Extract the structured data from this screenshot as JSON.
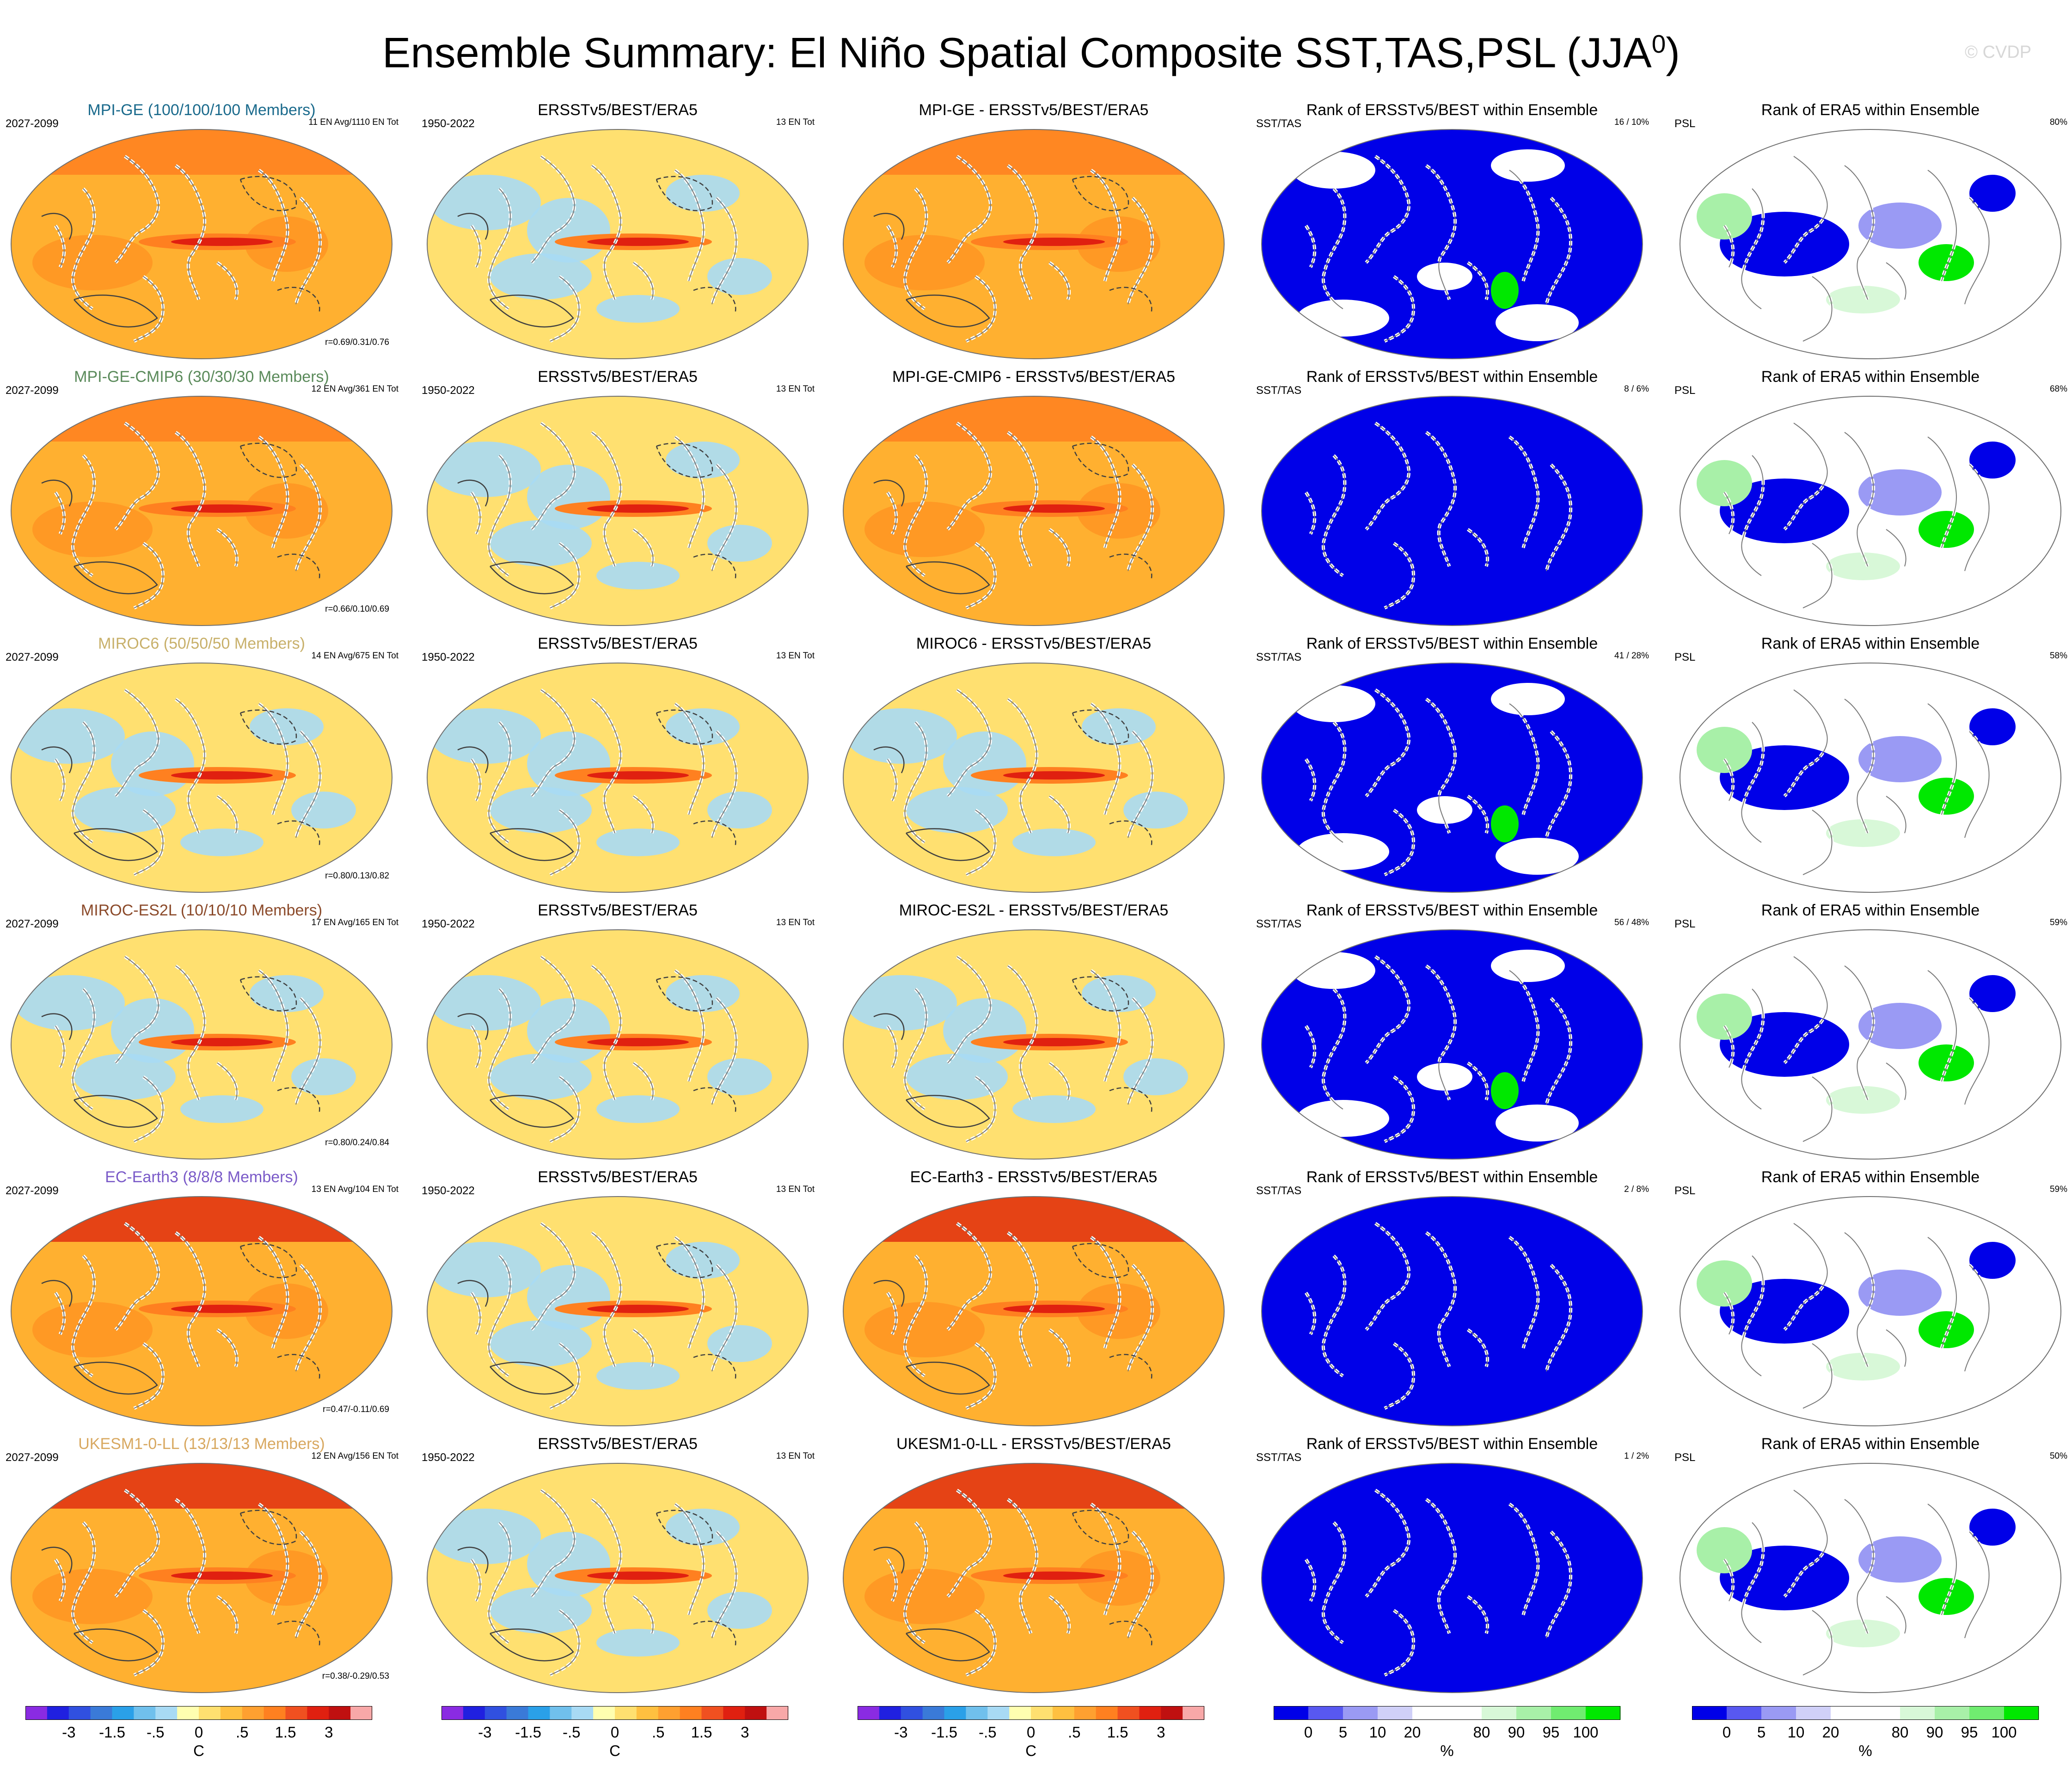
{
  "title": "Ensemble Summary: El Niño Spatial Composite SST,TAS,PSL (JJA",
  "title_superscript": "0",
  "title_close": ")",
  "watermark": "© CVDP",
  "rows": [
    {
      "model": "MPI-GE (100/100/100 Members)",
      "model_color": "#1a6a8c",
      "model_short": "MPI-GE",
      "period": "2027-2099",
      "ens_info": "11 EN Avg/1110 EN Tot",
      "corr": "r=0.69/0.31/0.76",
      "obs_count": "13 EN Tot",
      "rank_sst": "16 /  10%",
      "rank_psl": "80%",
      "warm": 0.62,
      "rank_style": "mixed"
    },
    {
      "model": "MPI-GE-CMIP6 (30/30/30 Members)",
      "model_color": "#5a8a5a",
      "model_short": "MPI-GE-CMIP6",
      "period": "2027-2099",
      "ens_info": "12 EN Avg/361 EN Tot",
      "corr": "r=0.66/0.10/0.69",
      "obs_count": "13 EN Tot",
      "rank_sst": "8 /   6%",
      "rank_psl": "68%",
      "warm": 0.7,
      "rank_style": "blue"
    },
    {
      "model": "MIROC6 (50/50/50 Members)",
      "model_color": "#c8b06a",
      "model_short": "MIROC6",
      "period": "2027-2099",
      "ens_info": "14 EN Avg/675 EN Tot",
      "corr": "r=0.80/0.13/0.82",
      "obs_count": "13 EN Tot",
      "rank_sst": "41 /  28%",
      "rank_psl": "58%",
      "warm": 0.35,
      "rank_style": "mixed"
    },
    {
      "model": "MIROC-ES2L (10/10/10 Members)",
      "model_color": "#8b4a2a",
      "model_short": "MIROC-ES2L",
      "period": "2027-2099",
      "ens_info": "17 EN Avg/165 EN Tot",
      "corr": "r=0.80/0.24/0.84",
      "obs_count": "13 EN Tot",
      "rank_sst": "56 /  48%",
      "rank_psl": "59%",
      "warm": 0.3,
      "rank_style": "mixed"
    },
    {
      "model": "EC-Earth3 (8/8/8 Members)",
      "model_color": "#7a5ac8",
      "model_short": "EC-Earth3",
      "period": "2027-2099",
      "ens_info": "13 EN Avg/104 EN Tot",
      "corr": "r=0.47/-0.11/0.69",
      "obs_count": "13 EN Tot",
      "rank_sst": "2 /   8%",
      "rank_psl": "59%",
      "warm": 0.85,
      "rank_style": "blue"
    },
    {
      "model": "UKESM1-0-LL (13/13/13 Members)",
      "model_color": "#d8a860",
      "model_short": "UKESM1-0-LL",
      "period": "2027-2099",
      "ens_info": "12 EN Avg/156 EN Tot",
      "corr": "r=0.38/-0.29/0.53",
      "obs_count": "13 EN Tot",
      "rank_sst": "1 /   2%",
      "rank_psl": "50%",
      "warm": 0.9,
      "rank_style": "blue"
    }
  ],
  "obs": {
    "title": "ERSSTv5/BEST/ERA5",
    "period": "1950-2022"
  },
  "diff_suffix": " - ERSSTv5/BEST/ERA5",
  "rank_sst_title": "Rank of ERSSTv5/BEST within Ensemble",
  "rank_sst_label": "SST/TAS",
  "rank_psl_title": "Rank of ERA5 within Ensemble",
  "rank_psl_label": "PSL",
  "colorbar_temp": {
    "colors": [
      "#8a2be2",
      "#2020e0",
      "#3050e0",
      "#3a7ad8",
      "#2aa0e8",
      "#70c0ec",
      "#a8daf4",
      "#ffffb0",
      "#ffe070",
      "#ffc040",
      "#ffa030",
      "#ff8020",
      "#f05020",
      "#e02010",
      "#c01010",
      "#f8a8a8"
    ],
    "labels": [
      "-3",
      "-1.5",
      "-.5",
      "0",
      ".5",
      "1.5",
      "3"
    ],
    "unit": "C"
  },
  "colorbar_rank": {
    "colors": [
      "#0000e8",
      "#5858f0",
      "#9a9af4",
      "#d0d0f8",
      "#ffffff",
      "#ffffff",
      "#d8f8d8",
      "#a8f0a8",
      "#70ec70",
      "#00e800"
    ],
    "labels": [
      "0",
      "5",
      "10",
      "20",
      "80",
      "90",
      "95",
      "100"
    ],
    "unit": "%"
  }
}
